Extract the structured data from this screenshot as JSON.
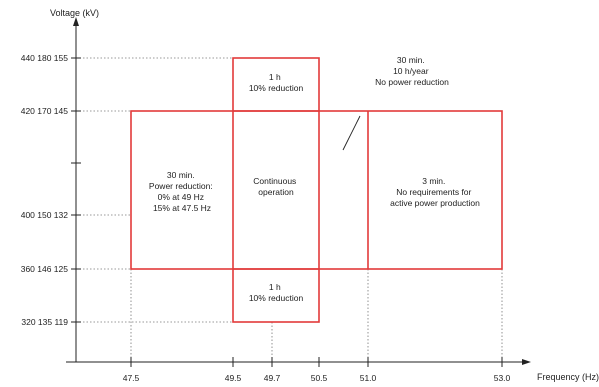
{
  "axes": {
    "y_title": "Voltage (kV)",
    "x_title": "Frequency (Hz)"
  },
  "voltage_levels": [
    {
      "label": "440  180  155"
    },
    {
      "label": "420  170  145"
    },
    {
      "label": "400  150  132"
    },
    {
      "label": "360  146  125"
    },
    {
      "label": "320  135  119"
    }
  ],
  "frequency_ticks": [
    "47.5",
    "49.5",
    "49.7",
    "50.5",
    "51.0",
    "53.0"
  ],
  "zones": {
    "left": [
      "30 min.",
      "Power reduction:",
      "0% at 49 Hz",
      "15% at 47.5 Hz"
    ],
    "center": [
      "Continuous",
      "operation"
    ],
    "top": [
      "1 h",
      "10% reduction"
    ],
    "bottom": [
      "1 h",
      "10% reduction"
    ],
    "right": [
      "3 min.",
      "No requirements for",
      "active power production"
    ],
    "callout": [
      "30 min.",
      "10 h/year",
      "No power reduction"
    ]
  },
  "colors": {
    "zone_border": "#e23a3a",
    "axis": "#222222",
    "guide": "#777777"
  }
}
